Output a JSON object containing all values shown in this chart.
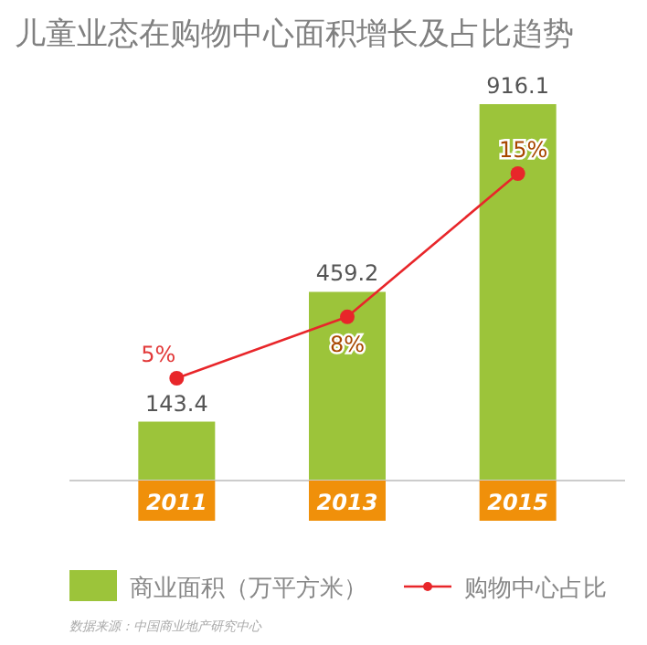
{
  "chart_data": {
    "type": "bar",
    "title": "儿童业态在购物中心面积增长及占比趋势",
    "categories": [
      "2011",
      "2013",
      "2015"
    ],
    "series": [
      {
        "name": "商业面积（万平方米）",
        "color": "#9cc43a",
        "values": [
          143.4,
          459.2,
          916.1
        ]
      },
      {
        "name": "购物中心占比",
        "type": "line",
        "axis": "y2",
        "color": "#e8262a",
        "marker": "circle",
        "values": [
          5,
          8,
          15
        ],
        "value_labels": [
          "5%",
          "8%",
          "15%"
        ]
      }
    ],
    "data_labels": true,
    "tick_labels": "x",
    "legend": "bottom",
    "annotations": [
      "数据来源：中国商业地产研究中心"
    ]
  }
}
